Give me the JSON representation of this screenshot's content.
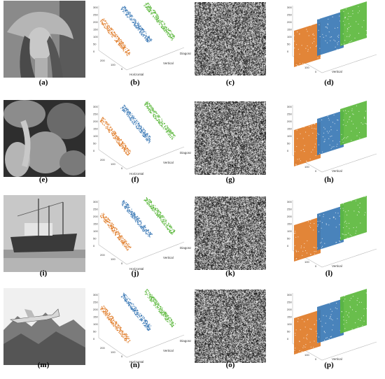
{
  "figure": {
    "rows": [
      {
        "image": "lena-photo",
        "captions": [
          "(a)",
          "(b)",
          "(c)",
          "(d)"
        ]
      },
      {
        "image": "peppers-photo",
        "captions": [
          "(e)",
          "(f)",
          "(g)",
          "(h)"
        ]
      },
      {
        "image": "boat-photo",
        "captions": [
          "(i)",
          "(j)",
          "(k)",
          "(l)"
        ]
      },
      {
        "image": "airplane-photo",
        "captions": [
          "(m)",
          "(n)",
          "(o)",
          "(p)"
        ]
      }
    ],
    "axis_labels": {
      "horizontal": "Horizontal",
      "vertical": "Vertical",
      "diagonal": "Diagonal"
    },
    "z_ticks": [
      "300",
      "250",
      "200",
      "150",
      "100",
      "50",
      "0"
    ],
    "x_ticks": [
      "200",
      "100",
      "0"
    ],
    "series_colors": {
      "horizontal": "#e07b27",
      "vertical": "#3a78b5",
      "diagonal": "#5cb83d"
    }
  }
}
